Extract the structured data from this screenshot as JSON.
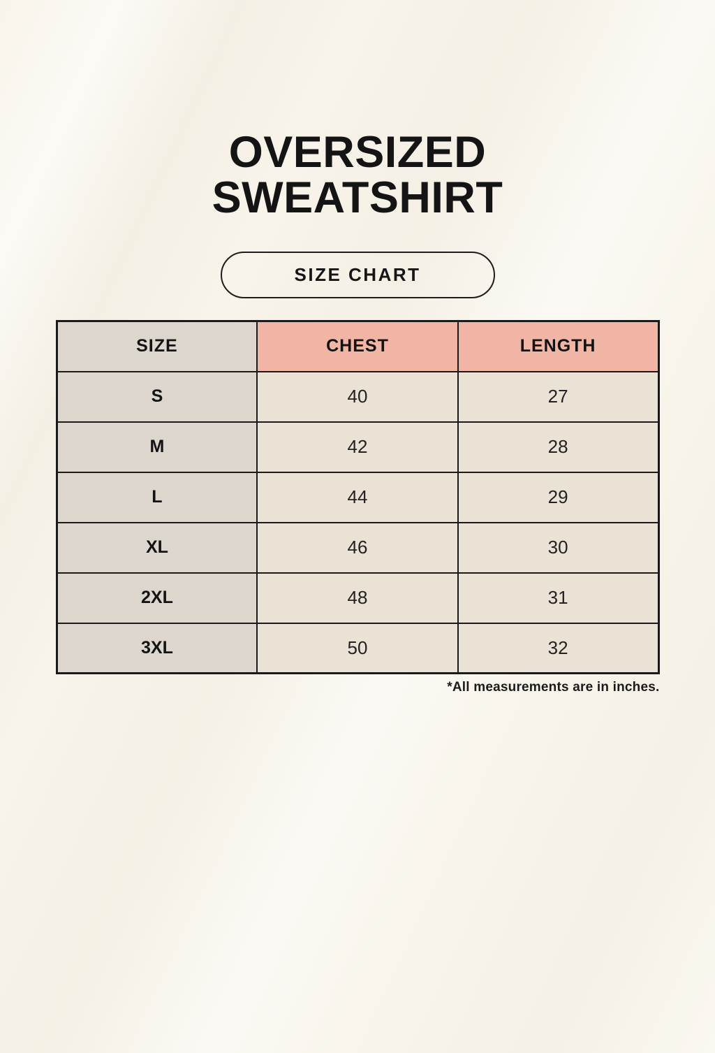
{
  "title": {
    "line1": "OVERSIZED",
    "line2": "SWEATSHIRT"
  },
  "size_chart_button": {
    "label": "SIZE CHART"
  },
  "footnote": "*All measurements are in inches.",
  "chart_data": {
    "type": "table",
    "title": "SIZE CHART",
    "columns": [
      "SIZE",
      "CHEST",
      "LENGTH"
    ],
    "rows": [
      [
        "S",
        "40",
        "27"
      ],
      [
        "M",
        "42",
        "28"
      ],
      [
        "L",
        "44",
        "29"
      ],
      [
        "XL",
        "46",
        "30"
      ],
      [
        "2XL",
        "48",
        "31"
      ],
      [
        "3XL",
        "50",
        "32"
      ]
    ],
    "units": "inches",
    "note": "*All measurements are in inches."
  },
  "colors": {
    "page_background": "#f8f4ea",
    "header_accent_pink": "#f0b5a5",
    "size_column_bg": "#dcd6cd",
    "data_cell_bg": "#e9e2d5",
    "table_border": "#1a1a1a",
    "text": "#141414"
  }
}
